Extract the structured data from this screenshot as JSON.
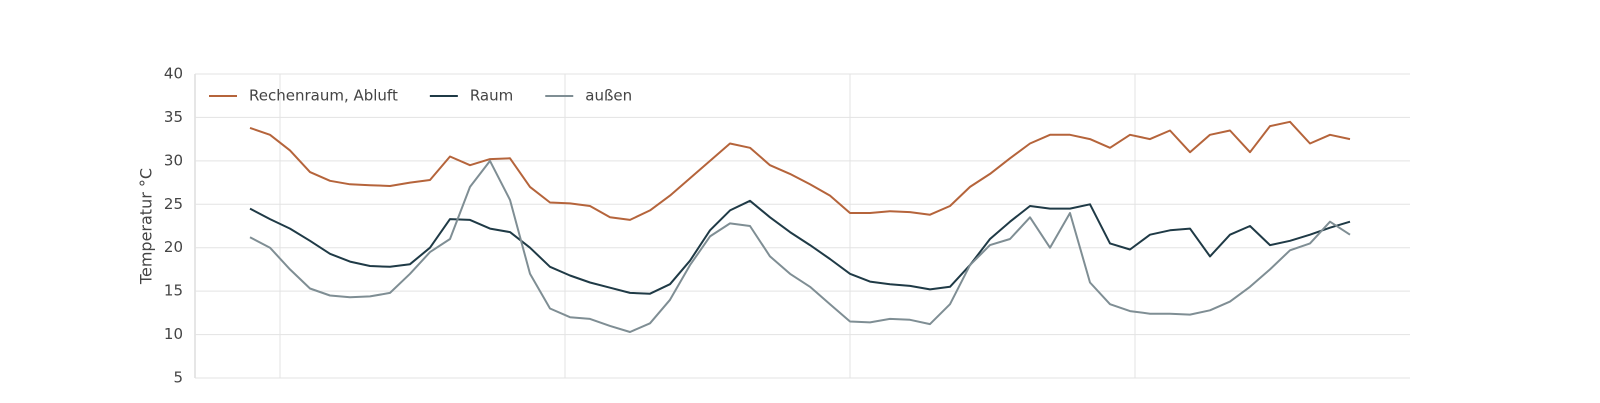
{
  "chart_data": {
    "type": "line",
    "y_label": "Temperatur  °C",
    "x": [
      0,
      1,
      2,
      3,
      4,
      5,
      6,
      7,
      8,
      9,
      10,
      11,
      12,
      13,
      14,
      15,
      16,
      17,
      18,
      19,
      20,
      21,
      22,
      23,
      24,
      25,
      26,
      27,
      28,
      29,
      30,
      31,
      32,
      33,
      34,
      35,
      36,
      37,
      38,
      39,
      40,
      41,
      42,
      43,
      44,
      45,
      46,
      47,
      48,
      49,
      50,
      51,
      52,
      53,
      54,
      55
    ],
    "xlim": [
      -2.75,
      58
    ],
    "ylim": [
      5,
      40
    ],
    "yticks": [
      5,
      10,
      15,
      20,
      25,
      30,
      35,
      40
    ],
    "grid": true,
    "legend": "top-left",
    "series": [
      {
        "name": "Rechenraum, Abluft",
        "color": "#b5643b",
        "values": [
          33.8,
          33,
          31.2,
          28.7,
          27.7,
          27.3,
          27.2,
          27.1,
          27.5,
          27.8,
          30.5,
          29.5,
          30.2,
          30.3,
          27,
          25.2,
          25.1,
          24.8,
          23.5,
          23.2,
          24.3,
          26,
          28,
          30,
          32,
          31.5,
          29.5,
          28.5,
          27.3,
          26,
          24,
          24,
          24.2,
          24.1,
          23.8,
          24.8,
          27,
          28.5,
          30.3,
          32,
          33,
          33,
          32.5,
          31.5,
          33,
          32.5,
          33.5,
          31,
          33,
          33.5,
          31,
          34,
          34.5,
          32,
          33,
          32.5
        ]
      },
      {
        "name": "Raum",
        "color": "#1f3a46",
        "values": [
          24.5,
          23.3,
          22.2,
          20.8,
          19.3,
          18.4,
          17.9,
          17.8,
          18.1,
          20,
          23.3,
          23.2,
          22.2,
          21.8,
          20,
          17.8,
          16.8,
          16,
          15.4,
          14.8,
          14.7,
          15.8,
          18.5,
          22,
          24.3,
          25.4,
          23.5,
          21.8,
          20.3,
          18.7,
          17,
          16.1,
          15.8,
          15.6,
          15.2,
          15.5,
          18,
          21,
          23,
          24.8,
          24.5,
          24.5,
          25,
          20.5,
          19.8,
          21.5,
          22,
          22.2,
          19,
          21.5,
          22.5,
          20.3,
          20.8,
          21.5,
          22.3,
          23
        ]
      },
      {
        "name": "außen",
        "color": "#7f8e94",
        "values": [
          21.2,
          20,
          17.5,
          15.3,
          14.5,
          14.3,
          14.4,
          14.8,
          17,
          19.5,
          21,
          27,
          30,
          25.5,
          17,
          13,
          12,
          11.8,
          11,
          10.3,
          11.3,
          14,
          18,
          21.3,
          22.8,
          22.5,
          19,
          17,
          15.5,
          13.5,
          11.5,
          11.4,
          11.8,
          11.7,
          11.2,
          13.5,
          18,
          20.3,
          21,
          23.5,
          20,
          24,
          16,
          13.5,
          12.7,
          12.4,
          12.4,
          12.3,
          12.8,
          13.8,
          15.5,
          17.5,
          19.7,
          20.5,
          23,
          21.5
        ]
      }
    ]
  }
}
